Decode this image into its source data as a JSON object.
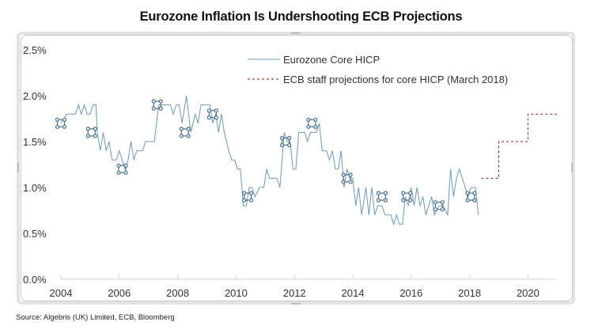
{
  "chart_data": {
    "type": "line",
    "title": "Eurozone Inflation Is Undershooting ECB Projections",
    "xlabel": "",
    "ylabel": "",
    "xlim": [
      2004,
      2021
    ],
    "ylim": [
      0.0,
      2.5
    ],
    "x_ticks": [
      "2004",
      "2006",
      "2008",
      "2010",
      "2012",
      "2014",
      "2016",
      "2018",
      "2020"
    ],
    "y_ticks": [
      "0.0%",
      "0.5%",
      "1.0%",
      "1.5%",
      "2.0%",
      "2.5%"
    ],
    "y_tick_values": [
      0.0,
      0.5,
      1.0,
      1.5,
      2.0,
      2.5
    ],
    "x_tick_values": [
      2004,
      2006,
      2008,
      2010,
      2012,
      2014,
      2016,
      2018,
      2020
    ],
    "grid": false,
    "legend_position": "top-center",
    "series": [
      {
        "name": "Eurozone Core HICP",
        "style": "solid",
        "color": "#6f98b5",
        "points": [
          [
            2004.0,
            1.7
          ],
          [
            2004.2,
            1.8
          ],
          [
            2004.5,
            1.8
          ],
          [
            2004.6,
            1.9
          ],
          [
            2004.7,
            1.8
          ],
          [
            2004.8,
            1.9
          ],
          [
            2004.9,
            1.8
          ],
          [
            2005.0,
            1.8
          ],
          [
            2005.1,
            1.9
          ],
          [
            2005.2,
            1.9
          ],
          [
            2005.25,
            1.6
          ],
          [
            2005.35,
            1.4
          ],
          [
            2005.45,
            1.6
          ],
          [
            2005.55,
            1.4
          ],
          [
            2005.65,
            1.5
          ],
          [
            2005.75,
            1.3
          ],
          [
            2005.9,
            1.3
          ],
          [
            2006.0,
            1.4
          ],
          [
            2006.1,
            1.3
          ],
          [
            2006.2,
            1.2
          ],
          [
            2006.3,
            1.3
          ],
          [
            2006.4,
            1.5
          ],
          [
            2006.5,
            1.3
          ],
          [
            2006.6,
            1.4
          ],
          [
            2006.8,
            1.4
          ],
          [
            2006.9,
            1.5
          ],
          [
            2007.2,
            1.5
          ],
          [
            2007.35,
            1.9
          ],
          [
            2007.6,
            1.9
          ],
          [
            2007.75,
            1.9
          ],
          [
            2007.85,
            1.8
          ],
          [
            2007.95,
            1.9
          ],
          [
            2008.05,
            1.9
          ],
          [
            2008.15,
            1.7
          ],
          [
            2008.3,
            2.0
          ],
          [
            2008.45,
            1.6
          ],
          [
            2008.6,
            1.8
          ],
          [
            2008.7,
            1.7
          ],
          [
            2008.8,
            1.9
          ],
          [
            2009.1,
            1.9
          ],
          [
            2009.2,
            1.7
          ],
          [
            2009.3,
            1.8
          ],
          [
            2009.4,
            1.6
          ],
          [
            2009.5,
            1.8
          ],
          [
            2009.6,
            1.6
          ],
          [
            2009.75,
            1.4
          ],
          [
            2009.85,
            1.3
          ],
          [
            2009.95,
            1.3
          ],
          [
            2010.05,
            1.2
          ],
          [
            2010.15,
            1.2
          ],
          [
            2010.25,
            0.8
          ],
          [
            2010.35,
            0.8
          ],
          [
            2010.45,
            1.0
          ],
          [
            2010.55,
            1.0
          ],
          [
            2010.65,
            0.9
          ],
          [
            2010.8,
            1.0
          ],
          [
            2010.95,
            1.0
          ],
          [
            2011.05,
            1.2
          ],
          [
            2011.15,
            1.1
          ],
          [
            2011.4,
            1.1
          ],
          [
            2011.5,
            1.0
          ],
          [
            2011.65,
            1.6
          ],
          [
            2011.75,
            1.5
          ],
          [
            2011.85,
            1.5
          ],
          [
            2011.95,
            1.2
          ],
          [
            2012.05,
            1.2
          ],
          [
            2012.15,
            1.6
          ],
          [
            2012.35,
            1.6
          ],
          [
            2012.45,
            1.5
          ],
          [
            2012.55,
            1.6
          ],
          [
            2012.75,
            1.6
          ],
          [
            2012.85,
            1.7
          ],
          [
            2012.95,
            1.4
          ],
          [
            2013.1,
            1.4
          ],
          [
            2013.2,
            1.3
          ],
          [
            2013.3,
            1.4
          ],
          [
            2013.4,
            1.2
          ],
          [
            2013.5,
            1.2
          ],
          [
            2013.6,
            1.4
          ],
          [
            2013.7,
            1.0
          ],
          [
            2013.8,
            1.2
          ],
          [
            2013.9,
            1.1
          ],
          [
            2014.0,
            1.1
          ],
          [
            2014.1,
            0.8
          ],
          [
            2014.2,
            1.0
          ],
          [
            2014.3,
            0.7
          ],
          [
            2014.45,
            1.0
          ],
          [
            2014.55,
            0.7
          ],
          [
            2014.65,
            1.0
          ],
          [
            2014.75,
            0.7
          ],
          [
            2014.85,
            0.8
          ],
          [
            2015.0,
            0.8
          ],
          [
            2015.1,
            0.7
          ],
          [
            2015.3,
            0.7
          ],
          [
            2015.4,
            0.6
          ],
          [
            2015.5,
            0.7
          ],
          [
            2015.6,
            0.6
          ],
          [
            2015.7,
            0.6
          ],
          [
            2015.8,
            0.9
          ],
          [
            2015.9,
            0.8
          ],
          [
            2016.0,
            1.0
          ],
          [
            2016.1,
            0.8
          ],
          [
            2016.2,
            1.0
          ],
          [
            2016.3,
            0.8
          ],
          [
            2016.4,
            0.9
          ],
          [
            2016.5,
            0.7
          ],
          [
            2016.6,
            0.8
          ],
          [
            2016.7,
            0.9
          ],
          [
            2016.8,
            0.7
          ],
          [
            2016.95,
            0.8
          ],
          [
            2017.1,
            0.8
          ],
          [
            2017.25,
            0.7
          ],
          [
            2017.35,
            1.2
          ],
          [
            2017.45,
            0.9
          ],
          [
            2017.55,
            1.1
          ],
          [
            2017.65,
            1.2
          ],
          [
            2017.75,
            1.1
          ],
          [
            2017.85,
            1.0
          ],
          [
            2017.95,
            0.9
          ],
          [
            2018.05,
            1.0
          ],
          [
            2018.2,
            1.0
          ],
          [
            2018.3,
            0.7
          ]
        ]
      },
      {
        "name": "ECB staff projections for core HICP (March 2018)",
        "style": "dashed",
        "color": "#8b1a1a",
        "points": [
          [
            2018.4,
            1.1
          ],
          [
            2019.0,
            1.1
          ],
          [
            2019.0,
            1.5
          ],
          [
            2020.0,
            1.5
          ],
          [
            2020.0,
            1.8
          ],
          [
            2021.0,
            1.8
          ]
        ]
      }
    ],
    "markers": [
      [
        2004.0,
        1.7
      ],
      [
        2005.05,
        1.6
      ],
      [
        2006.1,
        1.2
      ],
      [
        2007.3,
        1.9
      ],
      [
        2008.25,
        1.6
      ],
      [
        2009.2,
        1.8
      ],
      [
        2010.4,
        0.9
      ],
      [
        2011.7,
        1.5
      ],
      [
        2012.6,
        1.7
      ],
      [
        2013.8,
        1.1
      ],
      [
        2015.0,
        0.9
      ],
      [
        2015.85,
        0.9
      ],
      [
        2016.95,
        0.8
      ],
      [
        2018.05,
        0.9
      ]
    ]
  },
  "source_text": "Source: Algebris (UK) Limited, ECB, Bloomberg"
}
